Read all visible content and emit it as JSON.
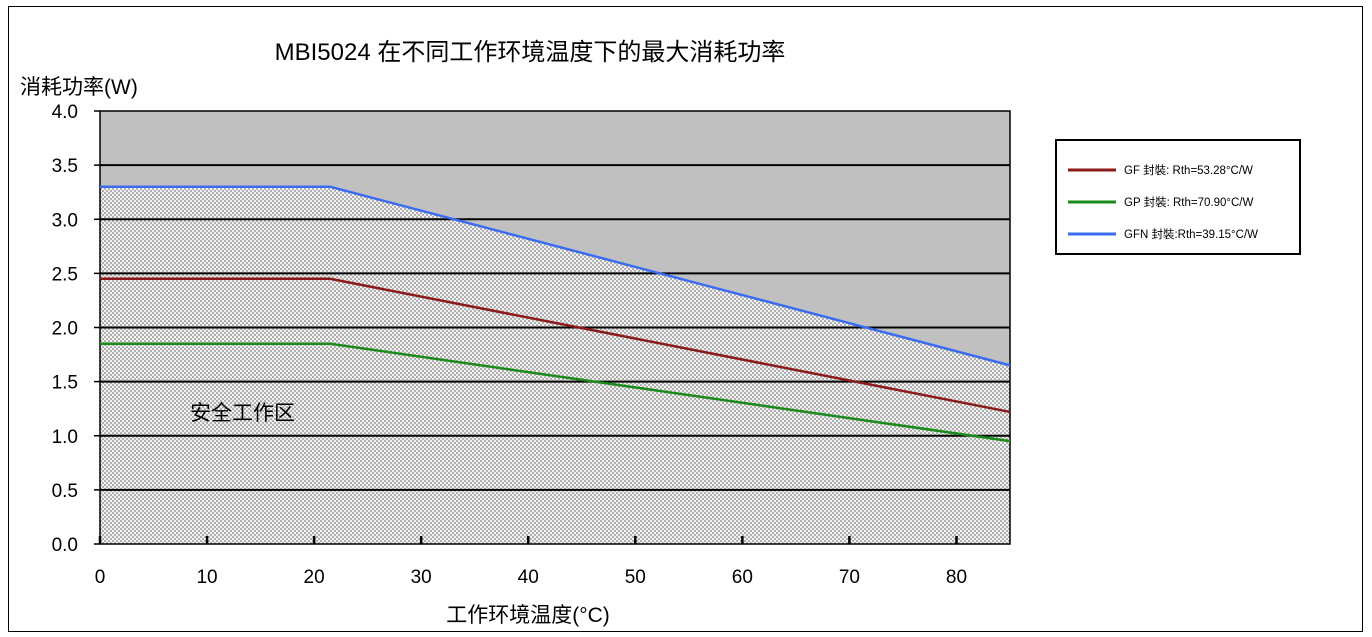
{
  "chart_data": {
    "type": "line",
    "title": "MBI5024 在不同工作环境温度下的最大消耗功率",
    "xlabel": "工作环境温度(°C)",
    "ylabel": "消耗功率(W)",
    "xlim": [
      0,
      85
    ],
    "ylim": [
      0,
      4.0
    ],
    "xticks": [
      "0",
      "10",
      "20",
      "30",
      "40",
      "50",
      "60",
      "70",
      "80"
    ],
    "yticks": [
      "0.0",
      "0.5",
      "1.0",
      "1.5",
      "2.0",
      "2.5",
      "3.0",
      "3.5",
      "4.0"
    ],
    "grid": true,
    "legend_position": "right",
    "region_label": "安全工作区",
    "series": [
      {
        "name": "GF  封裝: Rth=53.28°C/W",
        "color": "#8b1a1a",
        "points": [
          [
            0,
            2.45
          ],
          [
            21.5,
            2.45
          ],
          [
            85,
            1.22
          ]
        ]
      },
      {
        "name": "GP  封裝: Rth=70.90°C/W",
        "color": "#1a8a1a",
        "points": [
          [
            0,
            1.85
          ],
          [
            21.5,
            1.85
          ],
          [
            85,
            0.95
          ]
        ]
      },
      {
        "name": "GFN 封裝:Rth=39.15°C/W",
        "color": "#3b6cf0",
        "points": [
          [
            0,
            3.3
          ],
          [
            21.5,
            3.3
          ],
          [
            85,
            1.65
          ]
        ]
      }
    ],
    "colors": {
      "unsafe_fill": "#c0c0c0",
      "safe_fill_a": "#b8b8b8",
      "safe_fill_b": "#f2f2f2"
    }
  }
}
